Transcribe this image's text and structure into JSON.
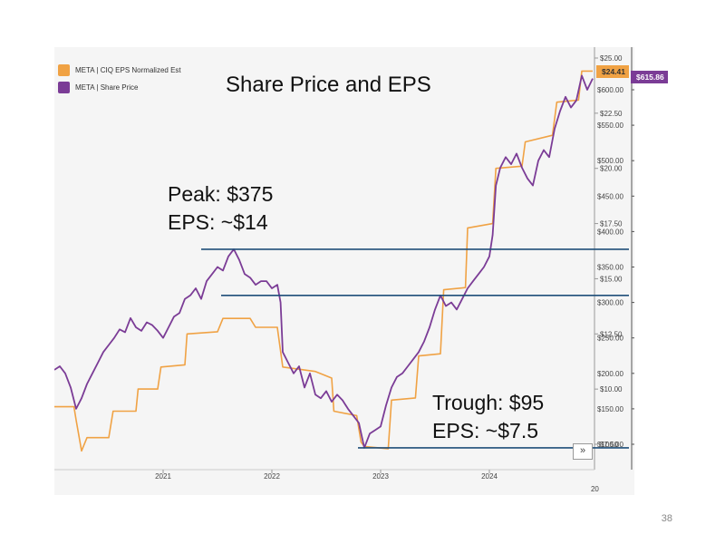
{
  "slide": {
    "title": "Share Price and EPS",
    "page_number": "38"
  },
  "legend": [
    {
      "label": "META | CIQ EPS Normalized Est",
      "color": "#f0a244"
    },
    {
      "label": "META | Share Price",
      "color": "#7b3c96"
    }
  ],
  "annotations": {
    "peak_line1": "Peak: $375",
    "peak_line2": "EPS: ~$14",
    "trough_line1": "Trough: $95",
    "trough_line2": "EPS: ~$7.5"
  },
  "tags": {
    "eps_last": "$24.41",
    "price_last": "$615.86"
  },
  "controls": {
    "expand_label": "»"
  },
  "colors": {
    "eps": "#f0a244",
    "price": "#7b3c96",
    "reference_line": "#1f4e79",
    "panel_bg": "#f5f5f5"
  },
  "chart_data": {
    "type": "line",
    "title": "Share Price and EPS",
    "x_ticks": [
      "2021",
      "2022",
      "2023",
      "2024",
      "20"
    ],
    "xlim": [
      2020.0,
      2024.95
    ],
    "eps_axis": {
      "min": 7.5,
      "max": 25,
      "ticks": [
        "$25.00",
        "$22.50",
        "$20.00",
        "$17.50",
        "$15.00",
        "$12.50",
        "$10.00",
        "$7.50"
      ],
      "tick_values": [
        25,
        22.5,
        20,
        17.5,
        15,
        12.5,
        10,
        7.5
      ]
    },
    "price_axis": {
      "min": 100,
      "max": 650,
      "ticks": [
        "$600.00",
        "$550.00",
        "$500.00",
        "$450.00",
        "$400.00",
        "$350.00",
        "$300.00",
        "$250.00",
        "$200.00",
        "$150.00",
        "$100.00"
      ],
      "tick_values": [
        600,
        550,
        500,
        450,
        400,
        350,
        300,
        250,
        200,
        150,
        100
      ]
    },
    "series": [
      {
        "name": "META | CIQ EPS Normalized Est",
        "axis": "eps",
        "points": [
          [
            2020.0,
            9.2
          ],
          [
            2020.18,
            9.2
          ],
          [
            2020.2,
            8.6
          ],
          [
            2020.25,
            7.2
          ],
          [
            2020.3,
            7.8
          ],
          [
            2020.5,
            7.8
          ],
          [
            2020.54,
            9.0
          ],
          [
            2020.75,
            9.0
          ],
          [
            2020.77,
            10.0
          ],
          [
            2020.95,
            10.0
          ],
          [
            2020.98,
            11.0
          ],
          [
            2021.2,
            11.1
          ],
          [
            2021.22,
            12.5
          ],
          [
            2021.5,
            12.6
          ],
          [
            2021.55,
            13.2
          ],
          [
            2021.8,
            13.2
          ],
          [
            2021.85,
            12.8
          ],
          [
            2022.05,
            12.8
          ],
          [
            2022.1,
            11.0
          ],
          [
            2022.4,
            10.8
          ],
          [
            2022.55,
            10.5
          ],
          [
            2022.57,
            9.0
          ],
          [
            2022.78,
            8.8
          ],
          [
            2022.82,
            7.6
          ],
          [
            2022.85,
            7.4
          ],
          [
            2023.07,
            7.3
          ],
          [
            2023.1,
            9.5
          ],
          [
            2023.32,
            9.6
          ],
          [
            2023.35,
            11.5
          ],
          [
            2023.55,
            11.6
          ],
          [
            2023.58,
            14.5
          ],
          [
            2023.78,
            14.6
          ],
          [
            2023.8,
            17.3
          ],
          [
            2024.03,
            17.5
          ],
          [
            2024.06,
            20.0
          ],
          [
            2024.3,
            20.1
          ],
          [
            2024.33,
            21.2
          ],
          [
            2024.58,
            21.5
          ],
          [
            2024.62,
            23.0
          ],
          [
            2024.82,
            23.1
          ],
          [
            2024.85,
            24.41
          ],
          [
            2024.95,
            24.41
          ]
        ]
      },
      {
        "name": "META | Share Price",
        "axis": "price",
        "points": [
          [
            2020.0,
            205
          ],
          [
            2020.05,
            210
          ],
          [
            2020.1,
            200
          ],
          [
            2020.15,
            180
          ],
          [
            2020.2,
            150
          ],
          [
            2020.25,
            165
          ],
          [
            2020.3,
            185
          ],
          [
            2020.35,
            200
          ],
          [
            2020.4,
            215
          ],
          [
            2020.45,
            230
          ],
          [
            2020.5,
            240
          ],
          [
            2020.55,
            250
          ],
          [
            2020.6,
            262
          ],
          [
            2020.65,
            258
          ],
          [
            2020.7,
            278
          ],
          [
            2020.75,
            265
          ],
          [
            2020.8,
            260
          ],
          [
            2020.85,
            272
          ],
          [
            2020.9,
            268
          ],
          [
            2020.95,
            260
          ],
          [
            2021.0,
            250
          ],
          [
            2021.05,
            265
          ],
          [
            2021.1,
            280
          ],
          [
            2021.15,
            285
          ],
          [
            2021.2,
            305
          ],
          [
            2021.25,
            310
          ],
          [
            2021.3,
            320
          ],
          [
            2021.35,
            305
          ],
          [
            2021.4,
            330
          ],
          [
            2021.45,
            340
          ],
          [
            2021.5,
            350
          ],
          [
            2021.55,
            345
          ],
          [
            2021.6,
            365
          ],
          [
            2021.65,
            375
          ],
          [
            2021.7,
            360
          ],
          [
            2021.75,
            340
          ],
          [
            2021.8,
            335
          ],
          [
            2021.85,
            325
          ],
          [
            2021.9,
            330
          ],
          [
            2021.95,
            330
          ],
          [
            2022.0,
            320
          ],
          [
            2022.05,
            325
          ],
          [
            2022.08,
            300
          ],
          [
            2022.1,
            230
          ],
          [
            2022.15,
            215
          ],
          [
            2022.2,
            200
          ],
          [
            2022.25,
            210
          ],
          [
            2022.3,
            180
          ],
          [
            2022.35,
            200
          ],
          [
            2022.4,
            170
          ],
          [
            2022.45,
            165
          ],
          [
            2022.5,
            175
          ],
          [
            2022.55,
            160
          ],
          [
            2022.6,
            170
          ],
          [
            2022.65,
            162
          ],
          [
            2022.7,
            150
          ],
          [
            2022.75,
            140
          ],
          [
            2022.8,
            130
          ],
          [
            2022.85,
            95
          ],
          [
            2022.9,
            115
          ],
          [
            2022.95,
            120
          ],
          [
            2023.0,
            125
          ],
          [
            2023.05,
            155
          ],
          [
            2023.1,
            180
          ],
          [
            2023.15,
            195
          ],
          [
            2023.2,
            200
          ],
          [
            2023.25,
            210
          ],
          [
            2023.3,
            220
          ],
          [
            2023.35,
            230
          ],
          [
            2023.4,
            245
          ],
          [
            2023.45,
            265
          ],
          [
            2023.5,
            290
          ],
          [
            2023.55,
            310
          ],
          [
            2023.6,
            295
          ],
          [
            2023.65,
            300
          ],
          [
            2023.7,
            290
          ],
          [
            2023.75,
            305
          ],
          [
            2023.8,
            320
          ],
          [
            2023.85,
            330
          ],
          [
            2023.9,
            340
          ],
          [
            2023.95,
            350
          ],
          [
            2024.0,
            365
          ],
          [
            2024.03,
            395
          ],
          [
            2024.06,
            465
          ],
          [
            2024.1,
            490
          ],
          [
            2024.15,
            505
          ],
          [
            2024.2,
            495
          ],
          [
            2024.25,
            510
          ],
          [
            2024.3,
            490
          ],
          [
            2024.35,
            475
          ],
          [
            2024.4,
            465
          ],
          [
            2024.45,
            500
          ],
          [
            2024.5,
            515
          ],
          [
            2024.55,
            505
          ],
          [
            2024.6,
            545
          ],
          [
            2024.65,
            570
          ],
          [
            2024.7,
            590
          ],
          [
            2024.75,
            575
          ],
          [
            2024.8,
            585
          ],
          [
            2024.85,
            620
          ],
          [
            2024.9,
            600
          ],
          [
            2024.95,
            615.86
          ]
        ]
      }
    ],
    "reference_lines": [
      {
        "label": "peak",
        "axis": "price",
        "value": 375
      },
      {
        "label": "eps_peak",
        "axis": "price",
        "value": 310
      },
      {
        "label": "trough",
        "axis": "price",
        "value": 95
      }
    ]
  }
}
